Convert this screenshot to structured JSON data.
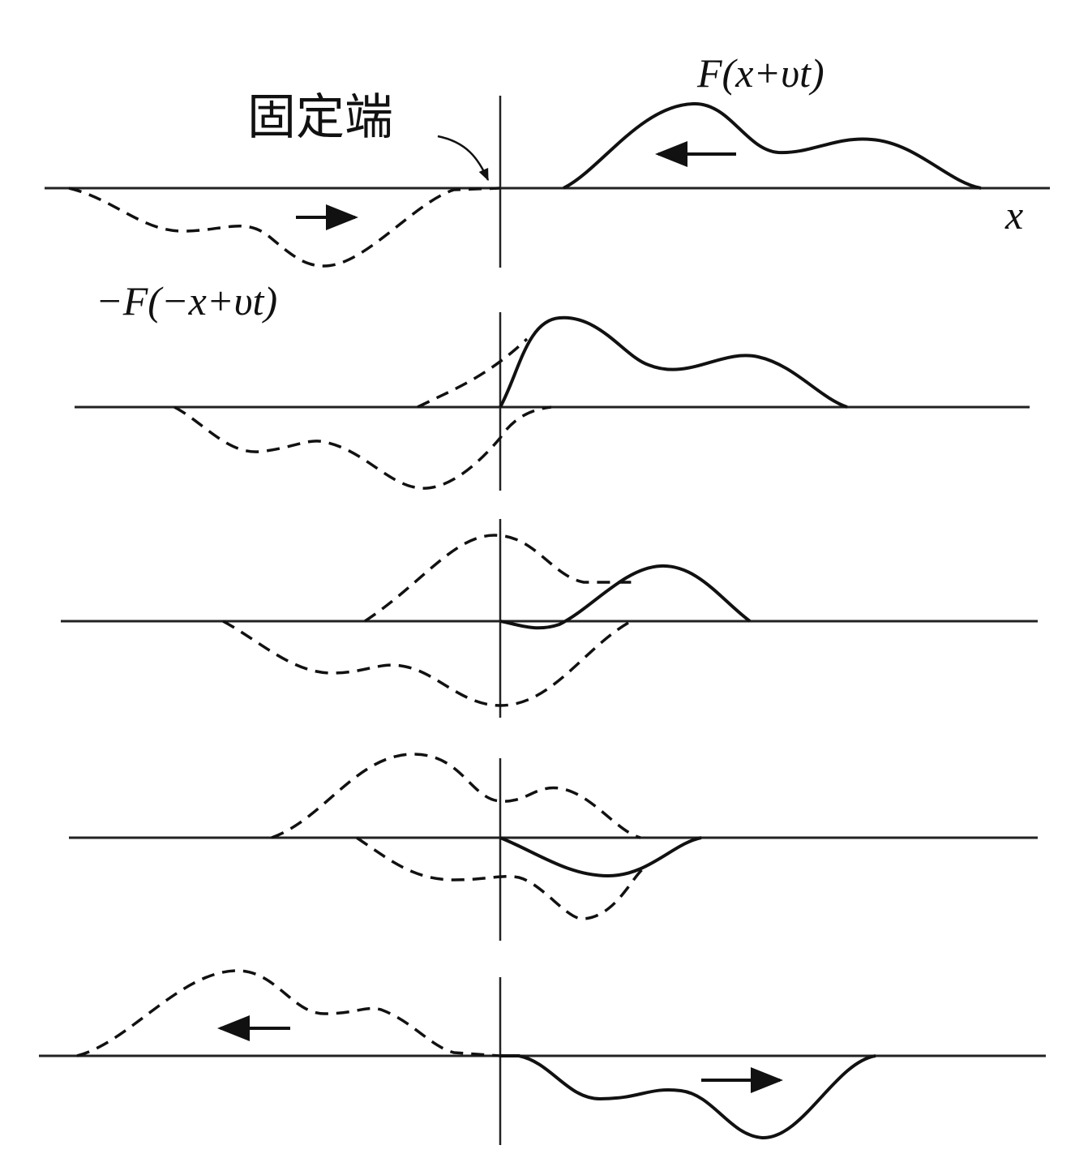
{
  "labels": {
    "fixed_end": "固定端",
    "incident": "F(x+υt)",
    "axis": "x",
    "reflected": "−F(−x+υt)"
  }
}
